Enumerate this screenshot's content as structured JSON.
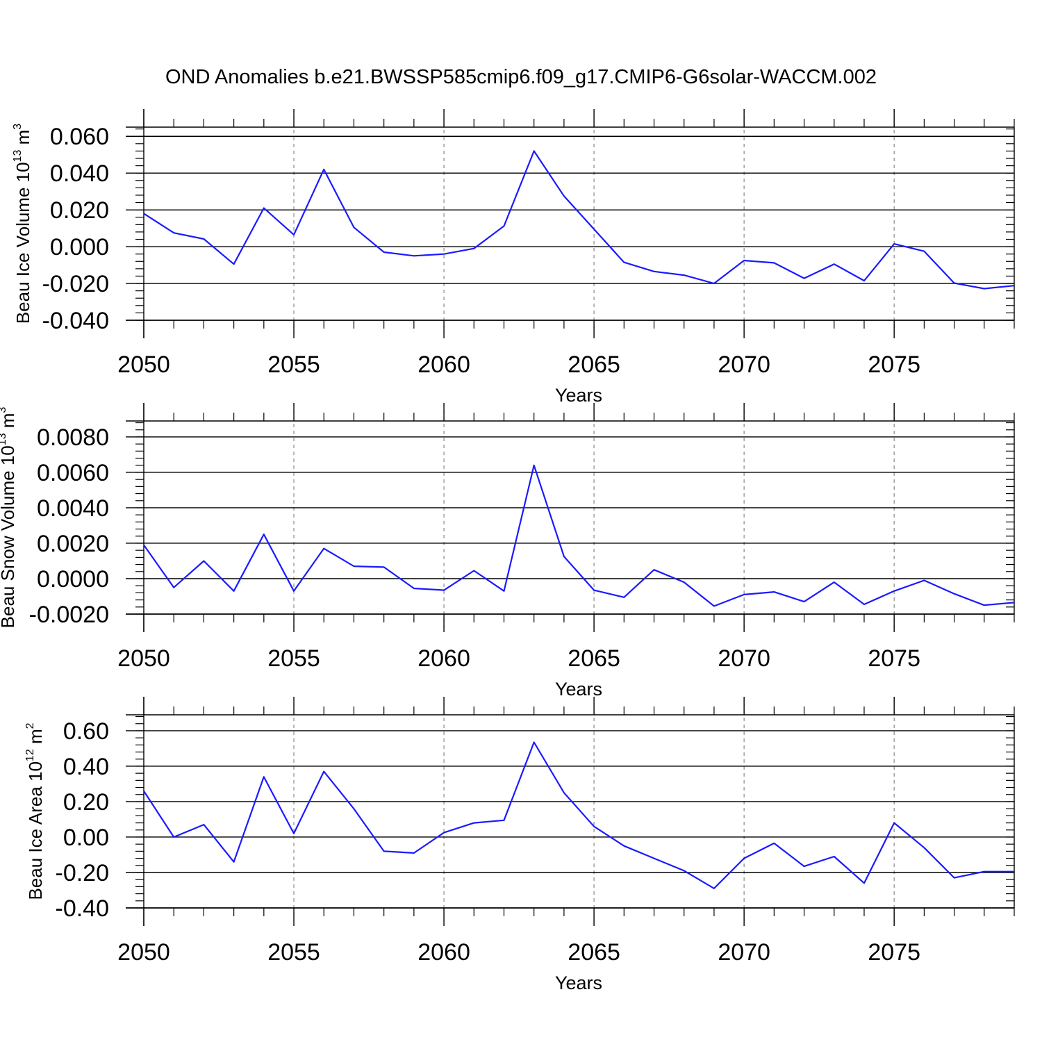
{
  "title": "OND Anomalies b.e21.BWSSP585cmip6.f09_g17.CMIP6-G6solar-WACCM.002",
  "colors": {
    "line": "#1a1aff",
    "axis": "#000000",
    "grid": "#888888",
    "background": "#ffffff"
  },
  "chart_data": [
    {
      "type": "line",
      "xlabel": "Years",
      "ylabel": {
        "main": "Beau Ice Volume 10",
        "sup": "13",
        "unit": " m",
        "unit_sup": "3"
      },
      "xlim": [
        2050,
        2079
      ],
      "ylim": [
        -0.04,
        0.065
      ],
      "x_ticks": [
        "2050",
        "2055",
        "2060",
        "2065",
        "2070",
        "2075"
      ],
      "y_ticks": [
        "0.060",
        "0.040",
        "0.020",
        "0.000",
        "-0.020",
        "-0.040"
      ],
      "y_tick_values": [
        0.06,
        0.04,
        0.02,
        0.0,
        -0.02,
        -0.04
      ],
      "grid": "dashed vertical at major x ticks",
      "x": [
        2050,
        2051,
        2052,
        2053,
        2054,
        2055,
        2056,
        2057,
        2058,
        2059,
        2060,
        2061,
        2062,
        2063,
        2064,
        2065,
        2066,
        2067,
        2068,
        2069,
        2070,
        2071,
        2072,
        2073,
        2074,
        2075,
        2076,
        2077,
        2078,
        2079
      ],
      "values": [
        0.018,
        0.0075,
        0.0042,
        -0.0095,
        0.021,
        0.0065,
        0.042,
        0.0105,
        -0.003,
        -0.005,
        -0.004,
        -0.001,
        0.0112,
        0.052,
        0.0275,
        0.0095,
        -0.0085,
        -0.0135,
        -0.0155,
        -0.02,
        -0.0075,
        -0.0088,
        -0.0172,
        -0.0095,
        -0.0185,
        0.0015,
        -0.0025,
        -0.0198,
        -0.0228,
        -0.0212
      ]
    },
    {
      "type": "line",
      "xlabel": "Years",
      "ylabel": {
        "main": "Beau Snow Volume 10",
        "sup": "13",
        "unit": " m",
        "unit_sup": "3"
      },
      "xlim": [
        2050,
        2079
      ],
      "ylim": [
        -0.002,
        0.0089
      ],
      "x_ticks": [
        "2050",
        "2055",
        "2060",
        "2065",
        "2070",
        "2075"
      ],
      "y_ticks": [
        "0.0080",
        "0.0060",
        "0.0040",
        "0.0020",
        "0.0000",
        "-0.0020"
      ],
      "y_tick_values": [
        0.008,
        0.006,
        0.004,
        0.002,
        0.0,
        -0.002
      ],
      "grid": "dashed vertical at major x ticks",
      "x": [
        2050,
        2051,
        2052,
        2053,
        2054,
        2055,
        2056,
        2057,
        2058,
        2059,
        2060,
        2061,
        2062,
        2063,
        2064,
        2065,
        2066,
        2067,
        2068,
        2069,
        2070,
        2071,
        2072,
        2073,
        2074,
        2075,
        2076,
        2077,
        2078,
        2079
      ],
      "values": [
        0.0019,
        -0.0005,
        0.001,
        -0.0007,
        0.0025,
        -0.0007,
        0.0017,
        0.0007,
        0.00065,
        -0.00055,
        -0.00065,
        0.00045,
        -0.0007,
        0.0064,
        0.00125,
        -0.00065,
        -0.00105,
        0.0005,
        -0.0002,
        -0.00155,
        -0.0009,
        -0.00075,
        -0.0013,
        -0.0002,
        -0.00145,
        -0.0007,
        -0.0001,
        -0.00085,
        -0.0015,
        -0.00135
      ]
    },
    {
      "type": "line",
      "xlabel": "Years",
      "ylabel": {
        "main": "Beau Ice Area 10",
        "sup": "12",
        "unit": " m",
        "unit_sup": "2"
      },
      "xlim": [
        2050,
        2079
      ],
      "ylim": [
        -0.4,
        0.69
      ],
      "x_ticks": [
        "2050",
        "2055",
        "2060",
        "2065",
        "2070",
        "2075"
      ],
      "y_ticks": [
        "0.60",
        "0.40",
        "0.20",
        "0.00",
        "-0.20",
        "-0.40"
      ],
      "y_tick_values": [
        0.6,
        0.4,
        0.2,
        0.0,
        -0.2,
        -0.4
      ],
      "grid": "dashed vertical at major x ticks",
      "x": [
        2050,
        2051,
        2052,
        2053,
        2054,
        2055,
        2056,
        2057,
        2058,
        2059,
        2060,
        2061,
        2062,
        2063,
        2064,
        2065,
        2066,
        2067,
        2068,
        2069,
        2070,
        2071,
        2072,
        2073,
        2074,
        2075,
        2076,
        2077,
        2078,
        2079
      ],
      "values": [
        0.26,
        0.0,
        0.07,
        -0.14,
        0.34,
        0.02,
        0.37,
        0.16,
        -0.08,
        -0.09,
        0.025,
        0.08,
        0.095,
        0.535,
        0.25,
        0.06,
        -0.05,
        -0.12,
        -0.19,
        -0.29,
        -0.12,
        -0.035,
        -0.165,
        -0.11,
        -0.26,
        0.08,
        -0.06,
        -0.23,
        -0.195,
        -0.195
      ]
    }
  ]
}
